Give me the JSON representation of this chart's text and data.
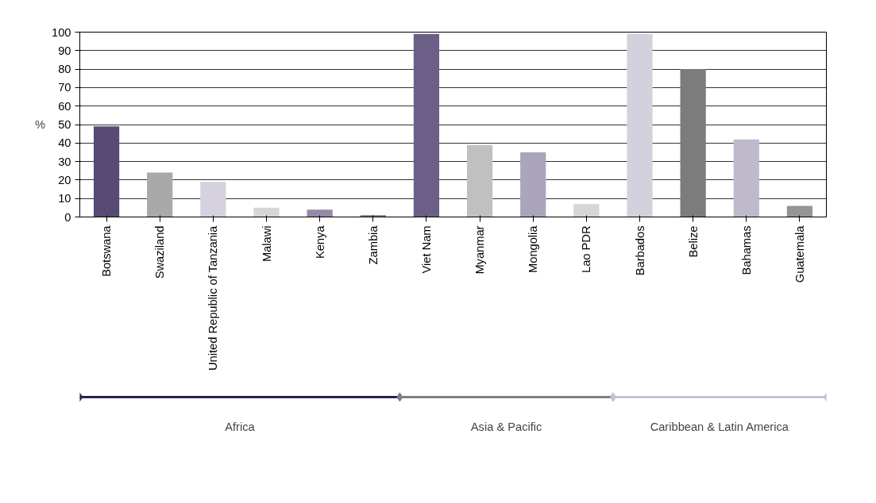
{
  "chart_data": {
    "type": "bar",
    "ylabel": "%",
    "categories": [
      "Botswana",
      "Swaziland",
      "United Republic of Tanzania",
      "Malawi",
      "Kenya",
      "Zambia",
      "Viet Nam",
      "Myanmar",
      "Mongolia",
      "Lao PDR",
      "Barbados",
      "Belize",
      "Bahamas",
      "Guatemala"
    ],
    "values": [
      49,
      24,
      19,
      5,
      4,
      1,
      99,
      39,
      35,
      7,
      99,
      80,
      42,
      6
    ],
    "colors": [
      "#574a75",
      "#a9a9a9",
      "#d5d1de",
      "#d6d6d6",
      "#948aa8",
      "#7a7a7a",
      "#6b5e87",
      "#c0c0c0",
      "#aba4bd",
      "#d6d6d6",
      "#d4d0de",
      "#7c7c7c",
      "#bfbacb",
      "#959595"
    ],
    "ylim": [
      0,
      100
    ],
    "yticks": [
      0,
      10,
      20,
      30,
      40,
      50,
      60,
      70,
      80,
      90,
      100
    ],
    "grid": "y",
    "annotations": [
      "Africa",
      "Asia & Pacific",
      "Caribbean & Latin America"
    ]
  }
}
